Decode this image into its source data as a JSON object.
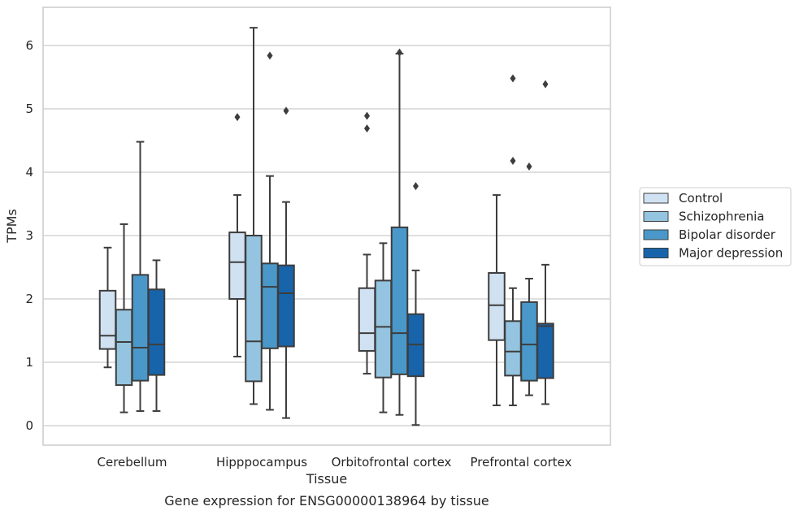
{
  "chart_data": {
    "type": "box",
    "title": "",
    "caption": "Gene expression for ENSG00000138964 by tissue",
    "xlabel": "Tissue",
    "ylabel": "TPMs",
    "ylim": [
      -0.3,
      6.6
    ],
    "yticks": [
      0,
      1,
      2,
      3,
      4,
      5,
      6
    ],
    "grid": "horizontal",
    "legend_position": "right",
    "categories": [
      "Cerebellum",
      "Hipppocampus",
      "Orbitofrontal cortex",
      "Prefrontal cortex"
    ],
    "series": [
      {
        "name": "Control",
        "color": "#d0e1f2",
        "boxes": [
          {
            "low": 0.92,
            "q1": 1.21,
            "median": 1.42,
            "q3": 2.13,
            "high": 2.81,
            "outliers": []
          },
          {
            "low": 1.09,
            "q1": 2.0,
            "median": 2.58,
            "q3": 3.05,
            "high": 3.64,
            "outliers": [
              4.87
            ]
          },
          {
            "low": 0.82,
            "q1": 1.18,
            "median": 1.46,
            "q3": 2.17,
            "high": 2.7,
            "outliers": [
              4.69,
              4.89
            ]
          },
          {
            "low": 0.32,
            "q1": 1.35,
            "median": 1.9,
            "q3": 2.41,
            "high": 3.64,
            "outliers": []
          }
        ]
      },
      {
        "name": "Schizophrenia",
        "color": "#94c4df",
        "boxes": [
          {
            "low": 0.21,
            "q1": 0.64,
            "median": 1.32,
            "q3": 1.83,
            "high": 3.18,
            "outliers": []
          },
          {
            "low": 0.34,
            "q1": 0.7,
            "median": 1.33,
            "q3": 3.0,
            "high": 6.28,
            "outliers": []
          },
          {
            "low": 0.21,
            "q1": 0.76,
            "median": 1.56,
            "q3": 2.29,
            "high": 2.88,
            "outliers": []
          },
          {
            "low": 0.32,
            "q1": 0.79,
            "median": 1.17,
            "q3": 1.65,
            "high": 2.17,
            "outliers": [
              4.18,
              5.48
            ]
          }
        ]
      },
      {
        "name": "Bipolar disorder",
        "color": "#4a98c9",
        "boxes": [
          {
            "low": 0.23,
            "q1": 0.71,
            "median": 1.23,
            "q3": 2.38,
            "high": 4.48,
            "outliers": []
          },
          {
            "low": 0.25,
            "q1": 1.22,
            "median": 2.19,
            "q3": 2.56,
            "high": 3.94,
            "outliers": [
              5.84
            ]
          },
          {
            "low": 0.17,
            "q1": 0.81,
            "median": 1.46,
            "q3": 3.13,
            "high": 5.87,
            "outliers": [
              5.89
            ]
          },
          {
            "low": 0.48,
            "q1": 0.71,
            "median": 1.28,
            "q3": 1.95,
            "high": 2.32,
            "outliers": [
              4.09
            ]
          }
        ]
      },
      {
        "name": "Major depression",
        "color": "#1764ab",
        "boxes": [
          {
            "low": 0.23,
            "q1": 0.8,
            "median": 1.28,
            "q3": 2.15,
            "high": 2.61,
            "outliers": []
          },
          {
            "low": 0.12,
            "q1": 1.25,
            "median": 2.09,
            "q3": 2.53,
            "high": 3.53,
            "outliers": [
              4.97
            ]
          },
          {
            "low": 0.01,
            "q1": 0.78,
            "median": 1.28,
            "q3": 1.76,
            "high": 2.45,
            "outliers": [
              3.78
            ]
          },
          {
            "low": 0.34,
            "q1": 0.75,
            "median": 1.57,
            "q3": 1.61,
            "high": 2.54,
            "outliers": [
              5.39
            ]
          }
        ]
      }
    ]
  }
}
